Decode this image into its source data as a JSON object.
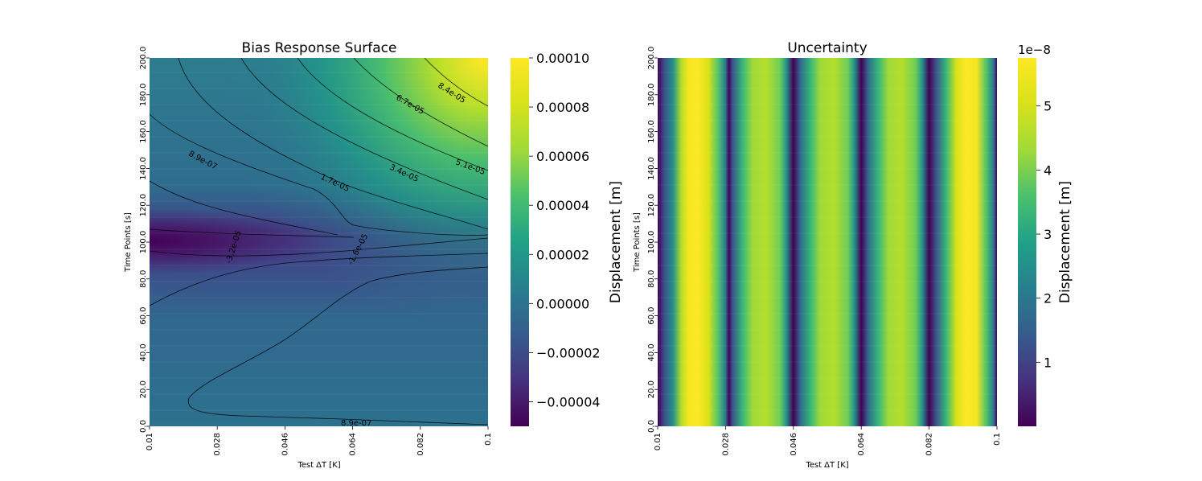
{
  "chart_data": [
    {
      "type": "heatmap",
      "title": "Bias Response Surface",
      "xlabel": "Test ΔT [K]",
      "ylabel": "Time Points [s]",
      "xlim": [
        0.01,
        0.1
      ],
      "ylim": [
        0.0,
        200.0
      ],
      "x_ticks": [
        "0.01",
        "0.028",
        "0.046",
        "0.064",
        "0.082",
        "0.1"
      ],
      "y_ticks": [
        "0.0",
        "20.0",
        "40.0",
        "60.0",
        "80.0",
        "100.0",
        "120.0",
        "140.0",
        "160.0",
        "180.0",
        "200.0"
      ],
      "colormap": "viridis",
      "colorbar": {
        "label": "Displacement [m]",
        "min": -5e-05,
        "max": 0.0001,
        "ticks": [
          "−0.00004",
          "−0.00002",
          "0.00000",
          "0.00002",
          "0.00004",
          "0.00006",
          "0.00008",
          "0.00010"
        ],
        "tick_values": [
          -4e-05,
          -2e-05,
          0.0,
          2e-05,
          4e-05,
          6e-05,
          8e-05,
          0.0001
        ],
        "offset_label": ""
      },
      "contour_labels": [
        "8.4e-05",
        "6.7e-05",
        "5.1e-05",
        "3.4e-05",
        "1.7e-05",
        "8.9e-07",
        "-1.6e-05",
        "-3.2e-05",
        "8.9e-07"
      ],
      "contour_levels": [
        -3.2e-05,
        -1.6e-05,
        8.9e-07,
        1.7e-05,
        3.4e-05,
        5.1e-05,
        6.7e-05,
        8.4e-05
      ]
    },
    {
      "type": "heatmap",
      "title": "Uncertainty",
      "xlabel": "Test ΔT [K]",
      "ylabel": "Time Points [s]",
      "xlim": [
        0.01,
        0.1
      ],
      "ylim": [
        0.0,
        200.0
      ],
      "x_ticks": [
        "0.01",
        "0.028",
        "0.046",
        "0.064",
        "0.082",
        "0.1"
      ],
      "y_ticks": [
        "0.0",
        "20.0",
        "40.0",
        "60.0",
        "80.0",
        "100.0",
        "120.0",
        "140.0",
        "160.0",
        "180.0",
        "200.0"
      ],
      "colormap": "viridis",
      "pattern": "vertical stripes, constant in time",
      "colorbar": {
        "label": "Displacement [m]",
        "min": 0.0,
        "max": 5.75,
        "ticks": [
          "1",
          "2",
          "3",
          "4",
          "5"
        ],
        "tick_values": [
          1,
          2,
          3,
          4,
          5
        ],
        "offset_label": "1e−8"
      }
    }
  ]
}
